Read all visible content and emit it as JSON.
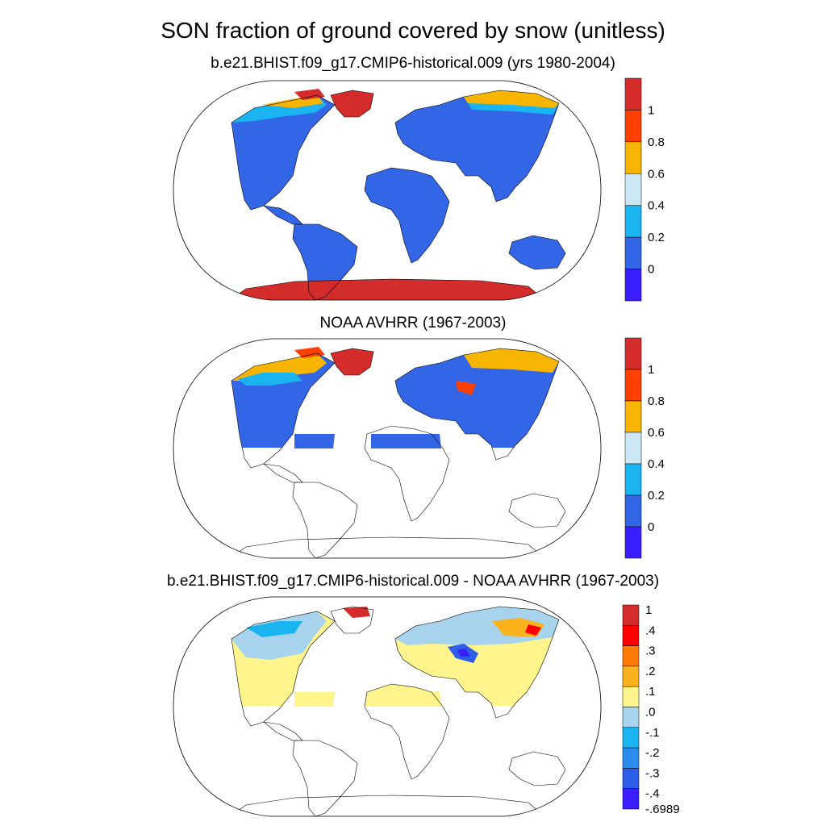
{
  "title": "SON fraction of ground covered by snow (unitless)",
  "panels": [
    {
      "subtitle": "b.e21.BHIST.f09_g17.CMIP6-historical.009 (yrs 1980-2004)",
      "colorbar": {
        "labels": [
          "1",
          "0.8",
          "0.6",
          "0.4",
          "0.2",
          "0"
        ],
        "colors": [
          "#d42b2b",
          "#ff4000",
          "#f7b400",
          "#cbe7f5",
          "#1ab5f0",
          "#3366e6",
          "#3a1eff"
        ]
      }
    },
    {
      "subtitle": "NOAA AVHRR (1967-2003)",
      "colorbar": {
        "labels": [
          "1",
          "0.8",
          "0.6",
          "0.4",
          "0.2",
          "0"
        ],
        "colors": [
          "#d42b2b",
          "#ff4000",
          "#f7b400",
          "#cbe7f5",
          "#1ab5f0",
          "#3366e6",
          "#3a1eff"
        ]
      }
    },
    {
      "subtitle": "b.e21.BHIST.f09_g17.CMIP6-historical.009 - NOAA AVHRR (1967-2003)",
      "colorbar": {
        "labels": [
          "1",
          ".4",
          ".3",
          ".2",
          ".1",
          ".0",
          "-.1",
          "-.2",
          "-.3",
          "-.4",
          "-.6989"
        ],
        "colors": [
          "#d42b2b",
          "#ff0000",
          "#ff7a00",
          "#fcb21d",
          "#fff58c",
          "#a7d3ec",
          "#1ab5f0",
          "#2b8cee",
          "#2e5de8",
          "#3a1eff"
        ]
      }
    }
  ],
  "legend_colors": {
    "land_model": "#3366e6",
    "greenland_ice": "#d42b2b",
    "high_snow": "#f7b400",
    "mid_snow": "#1ab5f0",
    "diff_neutral": "#fff58c",
    "diff_slight_neg": "#a7d3ec",
    "diff_strong_neg": "#3a1eff"
  }
}
